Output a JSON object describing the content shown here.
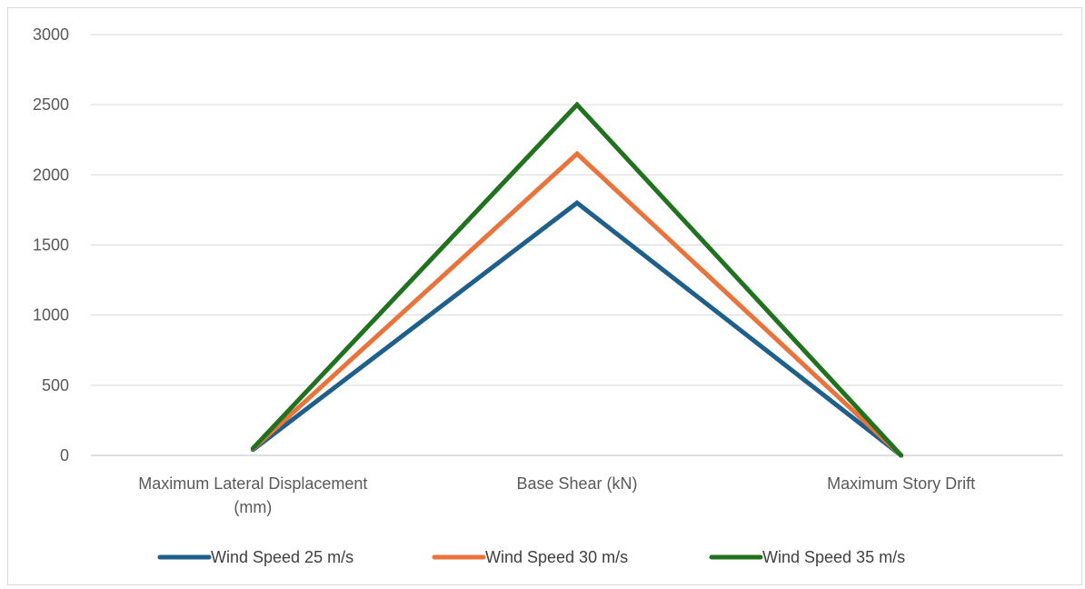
{
  "chart_data": {
    "type": "line",
    "categories": [
      [
        "Maximum Lateral Displacement",
        "(mm)"
      ],
      [
        "Base Shear (kN)"
      ],
      [
        "Maximum Story Drift"
      ]
    ],
    "ylim": [
      0,
      3000
    ],
    "yticks": [
      "0",
      "500",
      "1000",
      "1500",
      "2000",
      "2500",
      "3000"
    ],
    "grid": true,
    "legend_position": "bottom",
    "series": [
      {
        "name": "Wind Speed 25 m/s",
        "color": "#1f5f8b",
        "values": [
          40,
          1800,
          0.003
        ]
      },
      {
        "name": "Wind Speed 30 m/s",
        "color": "#e9733a",
        "values": [
          45,
          2150,
          0.004
        ]
      },
      {
        "name": "Wind Speed 35 m/s",
        "color": "#21721f",
        "values": [
          50,
          2500,
          0.005
        ]
      }
    ]
  }
}
